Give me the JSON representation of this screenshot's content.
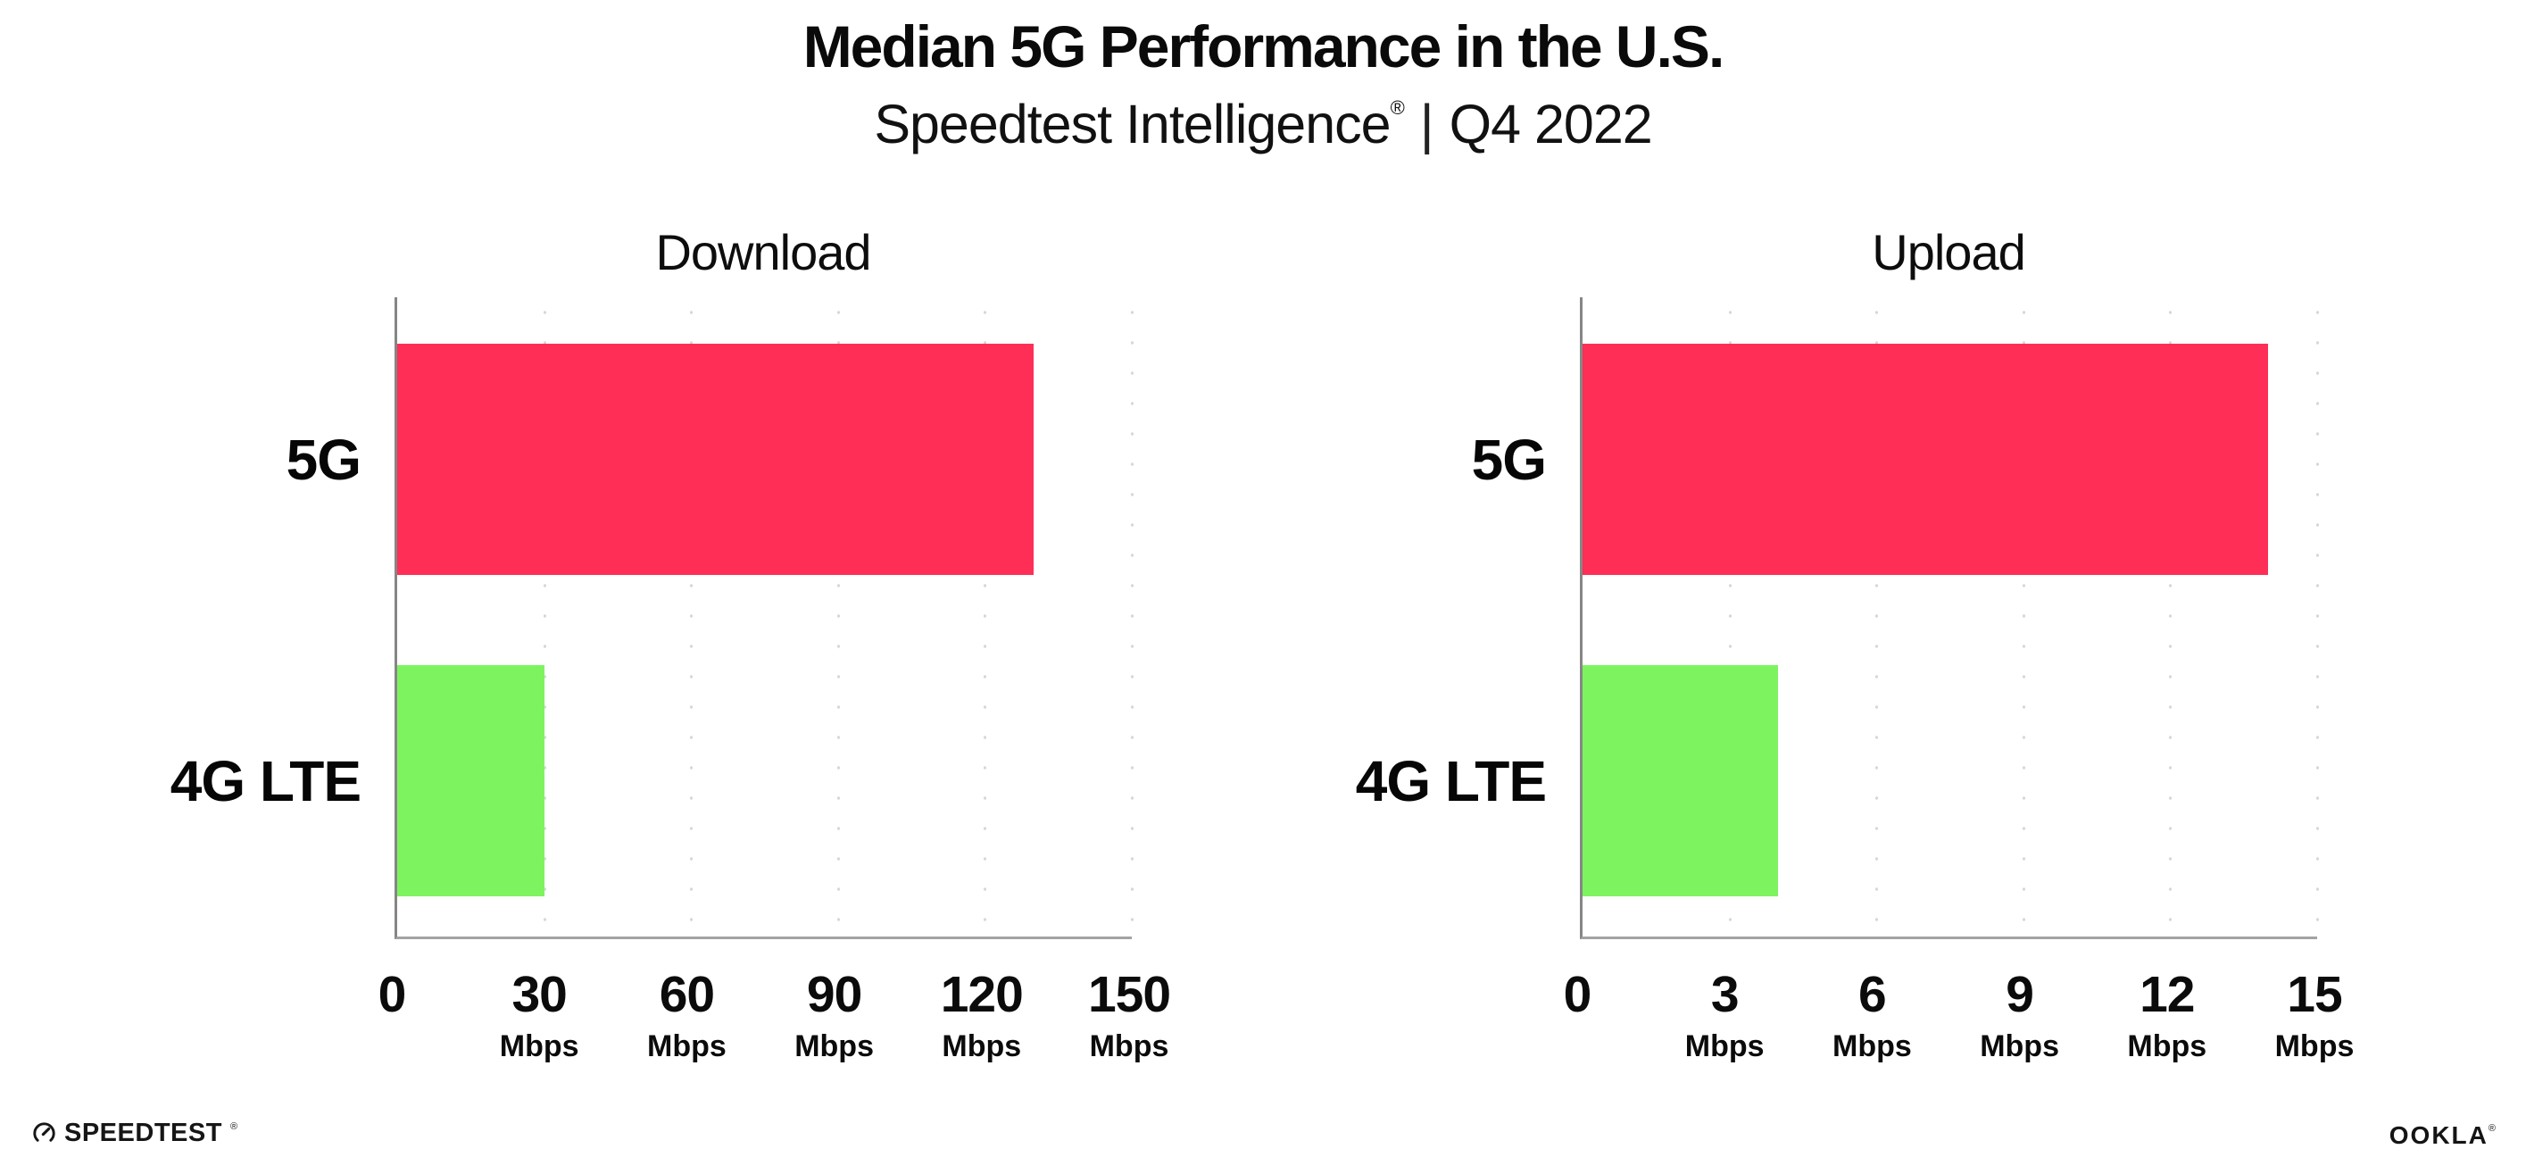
{
  "header": {
    "title": "Median 5G Performance in the U.S.",
    "subtitle_brand": "Speedtest Intelligence",
    "subtitle_reg": "®",
    "subtitle_sep": "|",
    "subtitle_period": "Q4 2022"
  },
  "colors": {
    "bar_5g": "#ff2e56",
    "bar_4g_lte": "#7df45f",
    "axis": "#a3a3a3",
    "grid_dots": "#d7d7db",
    "text": "#0b0b0b"
  },
  "chart_data": [
    {
      "type": "bar",
      "orientation": "horizontal",
      "title": "Download",
      "categories": [
        "5G",
        "4G LTE"
      ],
      "values": [
        130,
        30
      ],
      "unit": "Mbps",
      "xlim": [
        0,
        150
      ],
      "xticks": [
        0,
        30,
        60,
        90,
        120,
        150
      ],
      "bar_colors": [
        "#ff2e56",
        "#7df45f"
      ],
      "grid": "dotted-vertical",
      "legend": "none"
    },
    {
      "type": "bar",
      "orientation": "horizontal",
      "title": "Upload",
      "categories": [
        "5G",
        "4G LTE"
      ],
      "values": [
        14,
        4
      ],
      "unit": "Mbps",
      "xlim": [
        0,
        15
      ],
      "xticks": [
        0,
        3,
        6,
        9,
        12,
        15
      ],
      "bar_colors": [
        "#ff2e56",
        "#7df45f"
      ],
      "grid": "dotted-vertical",
      "legend": "none"
    }
  ],
  "footer": {
    "speedtest_label": "SPEEDTEST",
    "speedtest_mark": "®",
    "ookla_label": "OOKLA",
    "ookla_mark": "®"
  }
}
